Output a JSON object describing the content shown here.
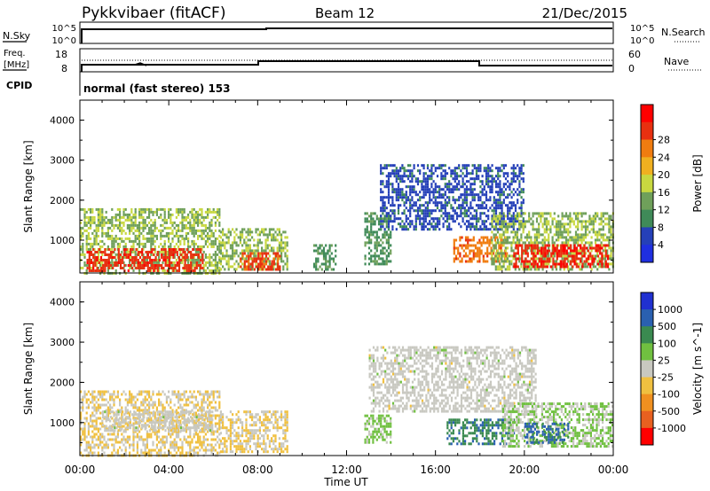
{
  "header": {
    "station": "Pykkvibaer (fitACF)",
    "beam": "Beam 12",
    "date": "21/Dec/2015"
  },
  "strip1": {
    "left_label": "N.Sky",
    "right_label": "N.Search",
    "left_ticks": [
      "10^5",
      "10^0"
    ],
    "right_ticks": [
      "10^5",
      "10^0"
    ]
  },
  "strip2": {
    "left_label_1": "Freq.",
    "left_label_2": "[MHz]",
    "right_label": "Nave",
    "left_ticks": [
      "18",
      "8"
    ],
    "right_ticks": [
      "60",
      "0"
    ],
    "cpid_label": "CPID",
    "cpid_text": "normal (fast stereo) 153"
  },
  "x_axis": {
    "label": "Time UT",
    "ticks": [
      "00:00",
      "04:00",
      "08:00",
      "12:00",
      "16:00",
      "20:00",
      "00:00"
    ]
  },
  "colors": {
    "power_scale": [
      "#1f2fe0",
      "#2540b8",
      "#3f8a58",
      "#6fa05a",
      "#c8d840",
      "#f0b020",
      "#f07c10",
      "#e83010",
      "#ff0000"
    ],
    "velocity_scale": [
      "#2030d0",
      "#2a60b0",
      "#3a8a50",
      "#70c040",
      "#c8c8c0",
      "#f0c040",
      "#f09020",
      "#e86020",
      "#ff0000"
    ]
  },
  "chart_data": [
    {
      "type": "heatmap",
      "panel": "power",
      "xlabel": "",
      "ylabel": "Slant Range [km]",
      "yticks": [
        "1000",
        "2000",
        "3000",
        "4000"
      ],
      "ylim": [
        180,
        4500
      ],
      "xlim": [
        "00:00",
        "24:00"
      ],
      "colorbar": {
        "label": "Power [dB]",
        "ticks": [
          "4",
          "8",
          "12",
          "16",
          "20",
          "24",
          "28"
        ],
        "range": [
          0,
          32
        ]
      },
      "regions": [
        {
          "t0": 0.0,
          "t1": 6.3,
          "r0": 200,
          "r1": 1800,
          "value": 14
        },
        {
          "t0": 0.3,
          "t1": 5.5,
          "r0": 250,
          "r1": 800,
          "value": 27
        },
        {
          "t0": 6.3,
          "t1": 9.3,
          "r0": 250,
          "r1": 1300,
          "value": 14
        },
        {
          "t0": 7.2,
          "t1": 9.0,
          "r0": 300,
          "r1": 700,
          "value": 26
        },
        {
          "t0": 10.5,
          "t1": 11.5,
          "r0": 300,
          "r1": 900,
          "value": 10
        },
        {
          "t0": 12.8,
          "t1": 14.0,
          "r0": 400,
          "r1": 1700,
          "value": 10
        },
        {
          "t0": 13.5,
          "t1": 20.0,
          "r0": 1300,
          "r1": 2900,
          "value": 6
        },
        {
          "t0": 16.8,
          "t1": 19.2,
          "r0": 500,
          "r1": 1100,
          "value": 24
        },
        {
          "t0": 18.5,
          "t1": 24.0,
          "r0": 300,
          "r1": 1700,
          "value": 14
        },
        {
          "t0": 19.5,
          "t1": 23.8,
          "r0": 350,
          "r1": 900,
          "value": 28
        }
      ]
    },
    {
      "type": "heatmap",
      "panel": "velocity",
      "xlabel": "Time UT",
      "ylabel": "Slant Range [km]",
      "yticks": [
        "1000",
        "2000",
        "3000",
        "4000"
      ],
      "ylim": [
        180,
        4500
      ],
      "xlim": [
        "00:00",
        "24:00"
      ],
      "colorbar": {
        "label": "Velocity [m s^-1]",
        "ticks": [
          "1000",
          "500",
          "100",
          "25",
          "-25",
          "-100",
          "-500",
          "-1000"
        ],
        "range": [
          -1200,
          1200
        ]
      },
      "regions": [
        {
          "t0": 0.0,
          "t1": 6.3,
          "r0": 200,
          "r1": 1800,
          "value": -150
        },
        {
          "t0": 1.0,
          "t1": 6.0,
          "r0": 800,
          "r1": 1300,
          "value": 0
        },
        {
          "t0": 6.3,
          "t1": 9.3,
          "r0": 250,
          "r1": 1300,
          "value": -150
        },
        {
          "t0": 12.8,
          "t1": 14.0,
          "r0": 500,
          "r1": 1200,
          "value": 200
        },
        {
          "t0": 13.0,
          "t1": 20.5,
          "r0": 1300,
          "r1": 2900,
          "value": 0
        },
        {
          "t0": 16.5,
          "t1": 19.5,
          "r0": 500,
          "r1": 1100,
          "value": 600
        },
        {
          "t0": 19.0,
          "t1": 24.0,
          "r0": 400,
          "r1": 1500,
          "value": 150
        },
        {
          "t0": 20.0,
          "t1": 22.0,
          "r0": 500,
          "r1": 1000,
          "value": 700
        }
      ]
    }
  ]
}
